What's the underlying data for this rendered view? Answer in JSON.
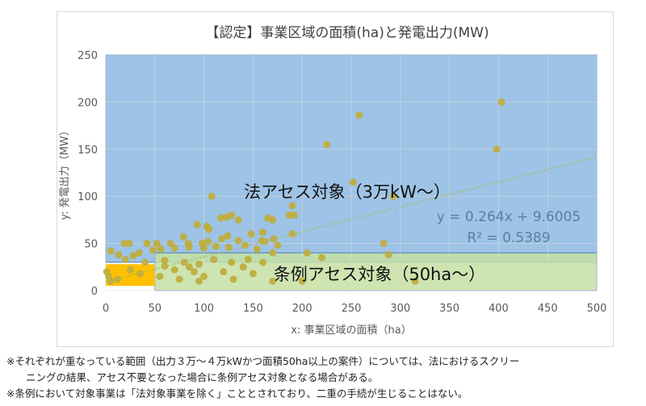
{
  "chart_data": {
    "type": "scatter",
    "title": "【認定】事業区域の面積(ha)と発電出力(MW)",
    "xlabel": "x: 事業区域の面積（ha）",
    "ylabel": "y: 発電出力（MW）",
    "xlim": [
      0,
      500
    ],
    "ylim": [
      0,
      250
    ],
    "xticks": [
      "0",
      "50",
      "100",
      "150",
      "200",
      "250",
      "300",
      "350",
      "400",
      "450",
      "500"
    ],
    "yticks": [
      "0",
      "50",
      "100",
      "150",
      "200",
      "250"
    ],
    "grid": true,
    "regions": [
      {
        "label": "法アセス対象（3万kW〜）",
        "x": [
          0,
          500
        ],
        "y": [
          30,
          250
        ],
        "color": "#9dc3e6"
      },
      {
        "label": "条例アセス対象（50ha〜）",
        "x": [
          50,
          500
        ],
        "y": [
          0,
          40
        ],
        "color": "#c5e0a5"
      },
      {
        "label": "",
        "x": [
          0,
          50
        ],
        "y": [
          5,
          28
        ],
        "color": "#ffc000"
      }
    ],
    "trendline": {
      "equation": "y = 0.264x + 9.6005",
      "r2": "R² = 0.5389",
      "slope": 0.264,
      "intercept": 9.6005
    },
    "point_color": "#bfae3f",
    "points": [
      [
        403,
        200
      ],
      [
        258,
        186
      ],
      [
        225,
        155
      ],
      [
        398,
        150
      ],
      [
        252,
        115
      ],
      [
        293,
        100
      ],
      [
        108,
        100
      ],
      [
        190,
        90
      ],
      [
        187,
        80
      ],
      [
        192,
        80
      ],
      [
        170,
        75
      ],
      [
        165,
        77
      ],
      [
        128,
        80
      ],
      [
        135,
        75
      ],
      [
        123,
        78
      ],
      [
        117,
        77
      ],
      [
        93,
        70
      ],
      [
        103,
        68
      ],
      [
        105,
        65
      ],
      [
        160,
        62
      ],
      [
        148,
        60
      ],
      [
        79,
        57
      ],
      [
        124,
        58
      ],
      [
        135,
        53
      ],
      [
        159,
        53
      ],
      [
        162,
        52
      ],
      [
        171,
        55
      ],
      [
        190,
        60
      ],
      [
        175,
        48
      ],
      [
        118,
        55
      ],
      [
        98,
        50
      ],
      [
        104,
        52
      ],
      [
        84,
        50
      ],
      [
        66,
        50
      ],
      [
        42,
        50
      ],
      [
        52,
        50
      ],
      [
        24,
        50
      ],
      [
        19,
        50
      ],
      [
        5,
        42
      ],
      [
        13,
        38
      ],
      [
        28,
        37
      ],
      [
        34,
        40
      ],
      [
        48,
        43
      ],
      [
        56,
        44
      ],
      [
        70,
        45
      ],
      [
        85,
        46
      ],
      [
        100,
        45
      ],
      [
        112,
        47
      ],
      [
        125,
        46
      ],
      [
        142,
        48
      ],
      [
        154,
        44
      ],
      [
        170,
        40
      ],
      [
        205,
        40
      ],
      [
        220,
        35
      ],
      [
        283,
        50
      ],
      [
        288,
        38
      ],
      [
        20,
        33
      ],
      [
        40,
        30
      ],
      [
        60,
        32
      ],
      [
        80,
        30
      ],
      [
        95,
        28
      ],
      [
        110,
        33
      ],
      [
        128,
        30
      ],
      [
        145,
        33
      ],
      [
        160,
        30
      ],
      [
        90,
        20
      ],
      [
        70,
        22
      ],
      [
        120,
        20
      ],
      [
        140,
        25
      ],
      [
        150,
        18
      ],
      [
        55,
        15
      ],
      [
        75,
        12
      ],
      [
        100,
        15
      ],
      [
        95,
        10
      ],
      [
        130,
        12
      ],
      [
        170,
        10
      ],
      [
        200,
        10
      ],
      [
        315,
        10
      ],
      [
        60,
        26
      ],
      [
        85,
        25
      ],
      [
        3,
        15
      ],
      [
        5,
        10
      ],
      [
        1,
        20
      ],
      [
        12,
        12
      ],
      [
        25,
        22
      ],
      [
        35,
        18
      ]
    ]
  },
  "notes": [
    "※それぞれが重なっている範囲（出力３万〜４万kWかつ面積50ha以上の案件）については、法におけるスクリー",
    "ニングの結果、アセス不要となった場合に条例アセス対象となる場合がある。",
    "※条例において対象事業は「法対象事業を除く」こととされており、二重の手続が生じることはない。"
  ]
}
